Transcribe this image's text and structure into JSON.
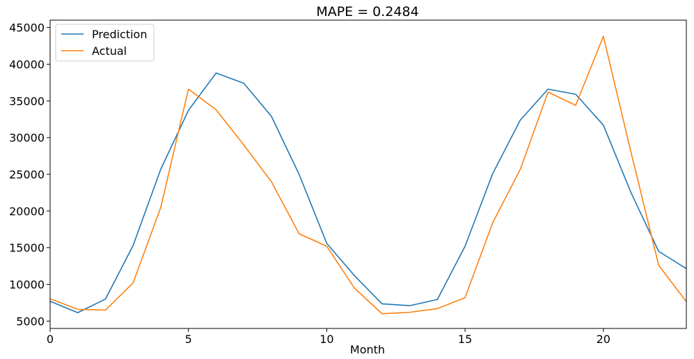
{
  "chart_data": {
    "type": "line",
    "title": "MAPE = 0.2484",
    "xlabel": "Month",
    "ylabel": "",
    "xlim": [
      0,
      23
    ],
    "ylim": [
      4000,
      46000
    ],
    "x_ticks": [
      0,
      5,
      10,
      15,
      20
    ],
    "y_ticks": [
      5000,
      10000,
      15000,
      20000,
      25000,
      30000,
      35000,
      40000,
      45000
    ],
    "grid": false,
    "legend_position": "top-left",
    "x": [
      0,
      1,
      2,
      3,
      4,
      5,
      6,
      7,
      8,
      9,
      10,
      11,
      12,
      13,
      14,
      15,
      16,
      17,
      18,
      19,
      20,
      21,
      22,
      23
    ],
    "series": [
      {
        "name": "Prediction",
        "color": "#1f77b4",
        "values": [
          7700,
          6150,
          8000,
          15300,
          25700,
          33700,
          38800,
          37400,
          32900,
          25000,
          15600,
          11200,
          7350,
          7100,
          7950,
          15200,
          25100,
          32400,
          36600,
          35900,
          31700,
          22500,
          14500,
          12150
        ]
      },
      {
        "name": "Actual",
        "color": "#ff7f0e",
        "values": [
          8050,
          6600,
          6500,
          10200,
          20500,
          36600,
          33800,
          29000,
          24000,
          16900,
          15200,
          9500,
          6000,
          6200,
          6700,
          8200,
          18400,
          25700,
          36200,
          34400,
          43800,
          28000,
          12600,
          7650
        ]
      }
    ]
  }
}
